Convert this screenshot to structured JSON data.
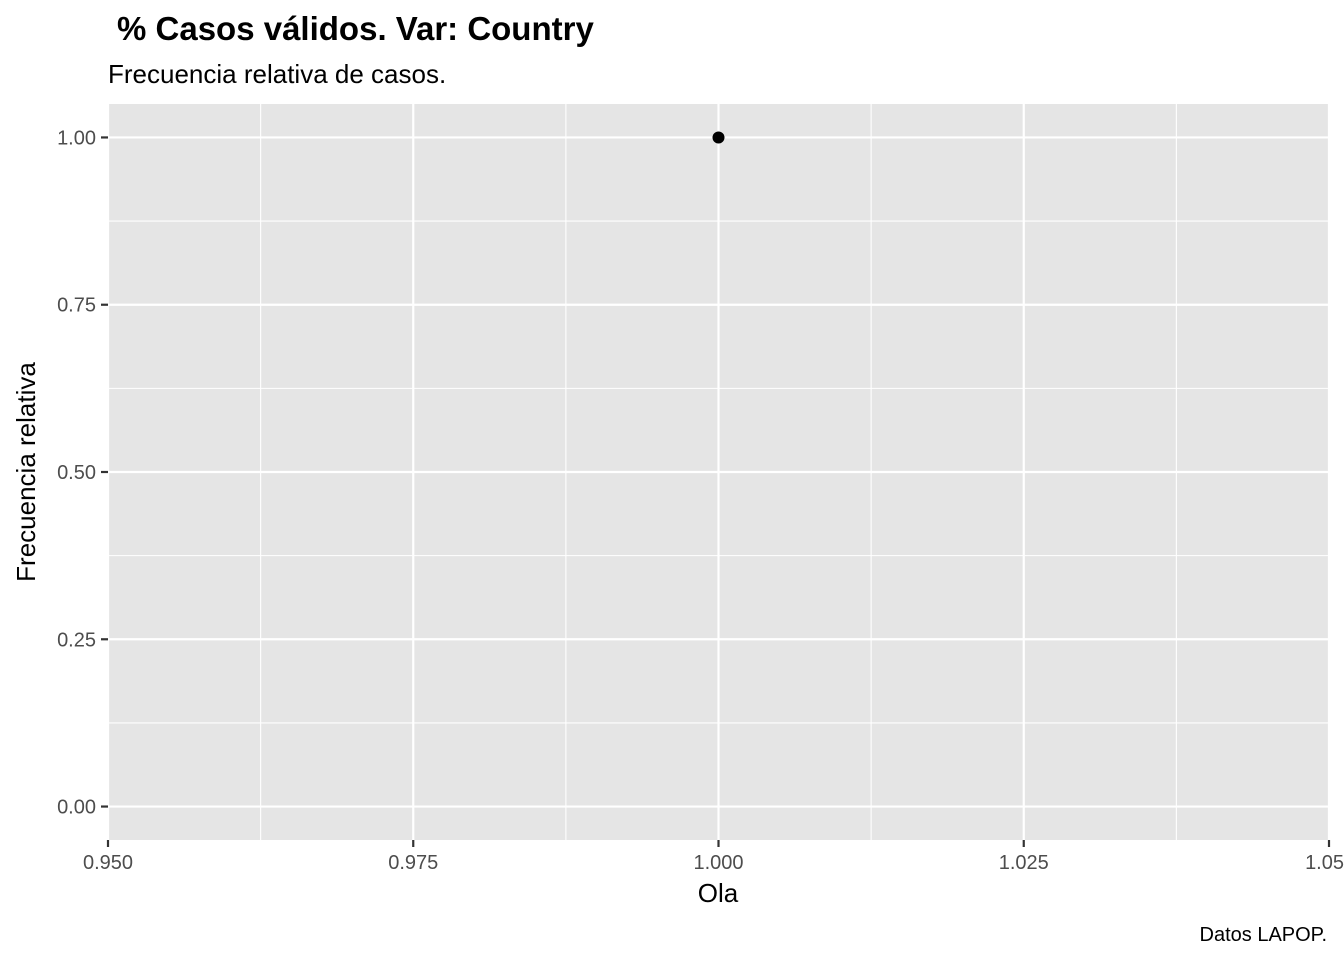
{
  "chart_data": {
    "type": "scatter",
    "title": "% Casos válidos. Var: Country",
    "subtitle": "Frecuencia relativa de casos.",
    "xlabel": "Ola",
    "ylabel": "Frecuencia relativa",
    "caption": "Datos LAPOP.",
    "xlim": [
      0.95,
      1.05
    ],
    "ylim": [
      -0.05,
      1.05
    ],
    "x_ticks": [
      "0.950",
      "0.975",
      "1.000",
      "1.025",
      "1.05"
    ],
    "y_ticks": [
      "0.00",
      "0.25",
      "0.50",
      "0.75",
      "1.00"
    ],
    "points": [
      {
        "x": 1.0,
        "y": 1.0
      }
    ],
    "grid": true,
    "colors": {
      "panel": "#e5e5e5",
      "grid": "#ffffff",
      "point": "#000000"
    }
  }
}
